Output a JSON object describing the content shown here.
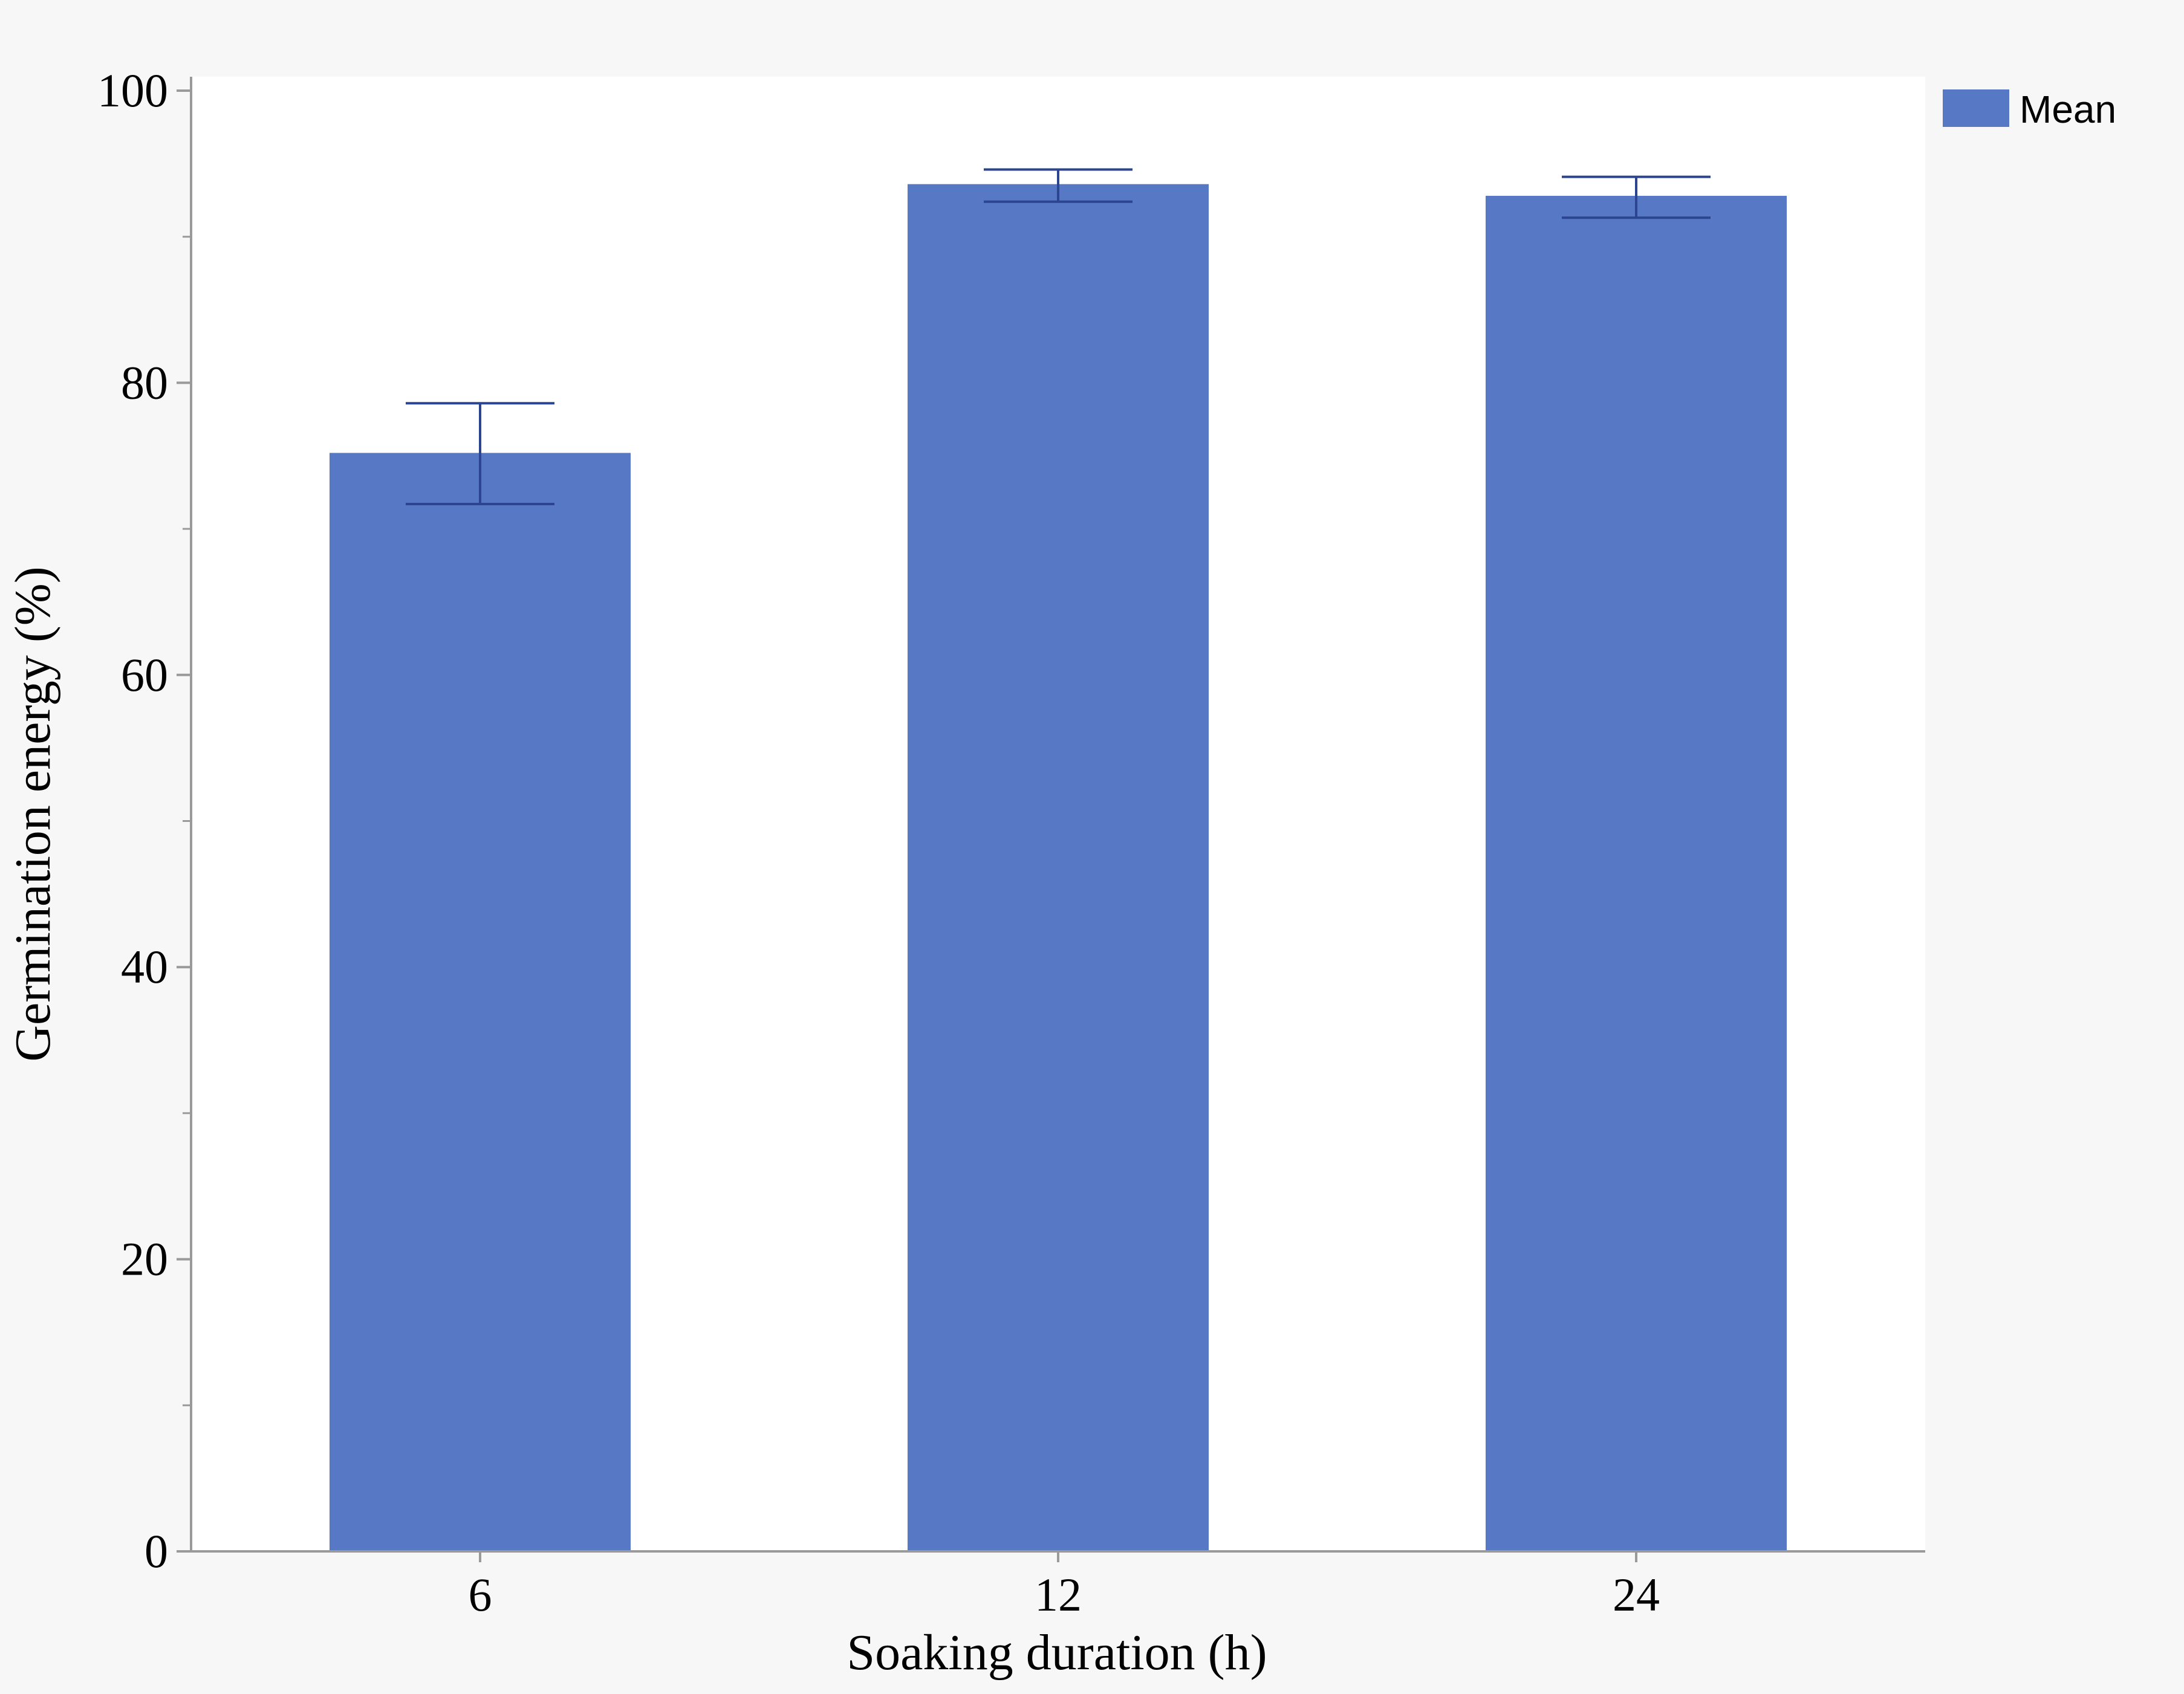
{
  "chart_data": {
    "type": "bar",
    "categories": [
      "6",
      "12",
      "24"
    ],
    "series": [
      {
        "name": "Mean",
        "values": [
          75.2,
          93.6,
          92.8
        ],
        "error_low": [
          71.7,
          92.4,
          91.3
        ],
        "error_high": [
          78.6,
          94.6,
          94.1
        ]
      }
    ],
    "xlabel": "Soaking duration (h)",
    "ylabel": "Germination energy (%)",
    "ylim": [
      0,
      100
    ],
    "yticks": [
      0,
      20,
      40,
      60,
      80,
      100
    ],
    "yminor_ticks": [
      10,
      30,
      50,
      70,
      90
    ],
    "grid": false,
    "legend_position": "top-right"
  },
  "colors": {
    "bar": "#5778c4",
    "error_bar": "#2b4590",
    "axis": "#9a9a9a",
    "plot_bg": "#ffffff",
    "page_bg": "#f7f7f7"
  }
}
